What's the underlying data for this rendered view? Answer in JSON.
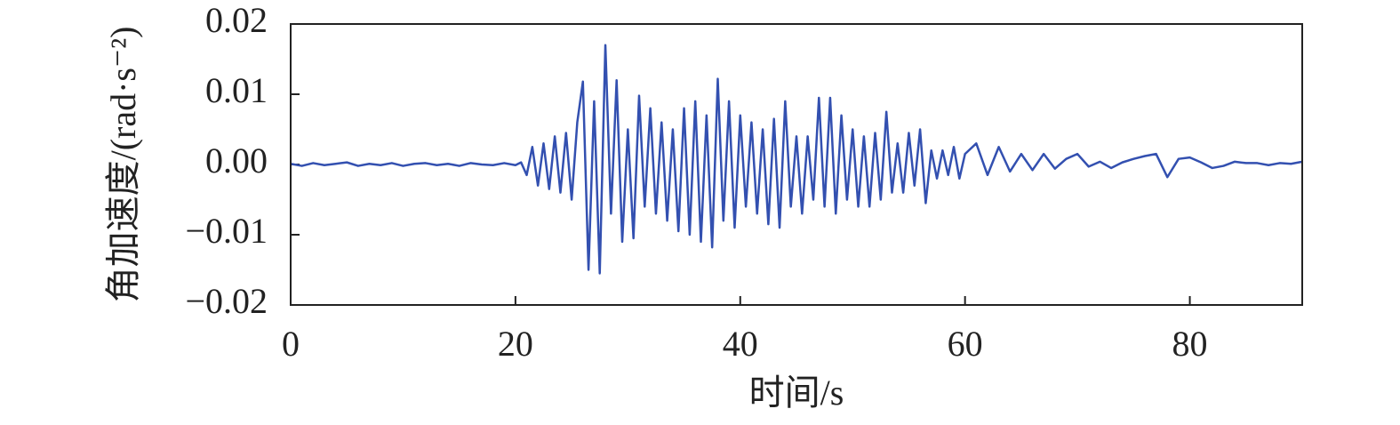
{
  "chart_data": {
    "type": "line",
    "ylabel": "角加速度/(rad·s⁻²)",
    "xlabel": "时间/s",
    "xlim": [
      0,
      90
    ],
    "xticks": [
      0,
      20,
      40,
      60,
      80
    ],
    "ylim": [
      -0.02,
      0.02
    ],
    "yticks": [
      0.02,
      0.01,
      {
        "value": 0,
        "label": "0.00"
      },
      {
        "value": -0.01,
        "label": "−0.01"
      },
      {
        "value": -0.02,
        "label": "−0.02"
      }
    ],
    "color": "#3350b0",
    "x": [
      0,
      1,
      2,
      3,
      4,
      5,
      6,
      7,
      8,
      9,
      10,
      11,
      12,
      13,
      14,
      15,
      16,
      17,
      18,
      19,
      20,
      20.5,
      21,
      21.5,
      22,
      22.5,
      23,
      23.5,
      24,
      24.5,
      25,
      25.5,
      26,
      26.5,
      27,
      27.5,
      28,
      28.5,
      29,
      29.5,
      30,
      30.5,
      31,
      31.5,
      32,
      32.5,
      33,
      33.5,
      34,
      34.5,
      35,
      35.5,
      36,
      36.5,
      37,
      37.5,
      38,
      38.5,
      39,
      39.5,
      40,
      40.5,
      41,
      41.5,
      42,
      42.5,
      43,
      43.5,
      44,
      44.5,
      45,
      45.5,
      46,
      46.5,
      47,
      47.5,
      48,
      48.5,
      49,
      49.5,
      50,
      50.5,
      51,
      51.5,
      52,
      52.5,
      53,
      53.5,
      54,
      54.5,
      55,
      55.5,
      56,
      56.5,
      57,
      57.5,
      58,
      58.5,
      59,
      59.5,
      60,
      61,
      62,
      63,
      64,
      65,
      66,
      67,
      68,
      69,
      70,
      71,
      72,
      73,
      74,
      75,
      76,
      77,
      78,
      79,
      80,
      81,
      82,
      83,
      84,
      85,
      86,
      87,
      88,
      89,
      90
    ],
    "values": [
      0.0001,
      -0.0002,
      0.0002,
      -0.0001,
      0.0001,
      0.0003,
      -0.0002,
      0.0001,
      -0.0001,
      0.0002,
      -0.0002,
      0.0001,
      0.0002,
      -0.0001,
      0.0001,
      -0.0002,
      0.0002,
      0,
      -0.0001,
      0.0002,
      -0.0001,
      0.0003,
      -0.0015,
      0.0025,
      -0.003,
      0.003,
      -0.0035,
      0.004,
      -0.004,
      0.0045,
      -0.005,
      0.006,
      0.0118,
      -0.015,
      0.009,
      -0.0155,
      0.017,
      -0.007,
      0.012,
      -0.011,
      0.005,
      -0.0105,
      0.0098,
      -0.006,
      0.008,
      -0.007,
      0.006,
      -0.008,
      0.005,
      -0.0095,
      0.008,
      -0.01,
      0.009,
      -0.011,
      0.007,
      -0.0118,
      0.0122,
      -0.008,
      0.009,
      -0.009,
      0.007,
      -0.006,
      0.006,
      -0.007,
      0.005,
      -0.0085,
      0.0065,
      -0.009,
      0.009,
      -0.006,
      0.004,
      -0.007,
      0.004,
      -0.005,
      0.0095,
      -0.006,
      0.0095,
      -0.007,
      0.007,
      -0.005,
      0.005,
      -0.006,
      0.004,
      -0.006,
      0.0045,
      -0.005,
      0.0075,
      -0.004,
      0.003,
      -0.004,
      0.0045,
      -0.003,
      0.005,
      -0.0055,
      0.002,
      -0.002,
      0.002,
      -0.0015,
      0.0025,
      -0.002,
      0.0015,
      0.003,
      -0.0015,
      0.0025,
      -0.001,
      0.0015,
      -0.0008,
      0.0015,
      -0.0006,
      0.0008,
      0.0015,
      -0.0003,
      0.0004,
      -0.0005,
      0.0003,
      0.0008,
      0.0012,
      0.0015,
      -0.0018,
      0.0008,
      0.001,
      0.0003,
      -0.0005,
      -0.0002,
      0.0004,
      0.0002,
      0.0002,
      -0.0001,
      0.0002,
      0.0001,
      0.0004
    ]
  }
}
